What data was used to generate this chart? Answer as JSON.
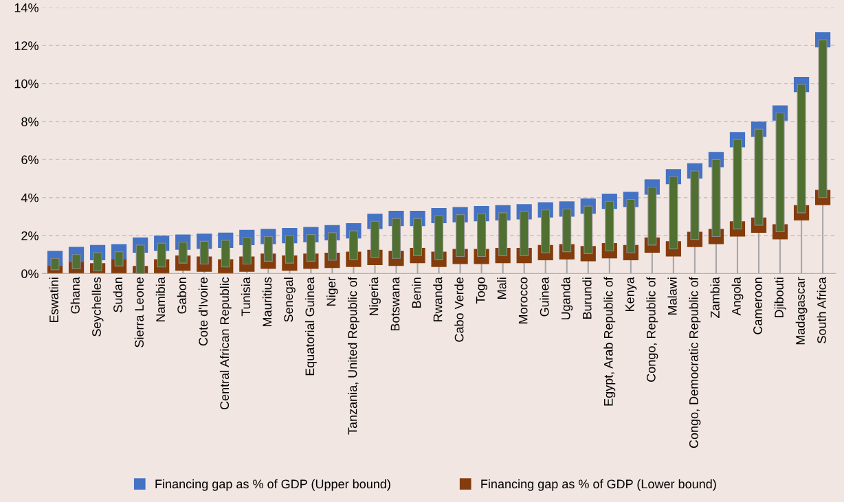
{
  "chart_data": {
    "type": "bar",
    "categories": [
      "Eswatini",
      "Ghana",
      "Seychelles",
      "Sudan",
      "Sierra Leone",
      "Namibia",
      "Gabon",
      "Cote d'Ivoire",
      "Central African Republic",
      "Tunisia",
      "Mauritius",
      "Senegal",
      "Equatorial Guinea",
      "Niger",
      "Tanzania, United Republic of",
      "Nigeria",
      "Botswana",
      "Benin",
      "Rwanda",
      "Cabo Verde",
      "Togo",
      "Mali",
      "Morocco",
      "Guinea",
      "Uganda",
      "Burundi",
      "Egypt, Arab Republic of",
      "Kenya",
      "Congo, Republic of",
      "Malawi",
      "Congo, Democratic Republic of",
      "Zambia",
      "Angola",
      "Cameroon",
      "Djibouti",
      "Madagascar",
      "South Africa"
    ],
    "series": [
      {
        "base": [
          0.2,
          0.25,
          0.15,
          0.4,
          0.0,
          0.35,
          0.55,
          0.5,
          0.35,
          0.5,
          0.65,
          0.55,
          0.65,
          0.7,
          0.75,
          0.85,
          0.8,
          0.95,
          0.75,
          0.9,
          0.9,
          0.95,
          0.95,
          1.1,
          1.15,
          1.05,
          1.2,
          1.1,
          1.5,
          1.3,
          1.8,
          1.95,
          2.35,
          2.55,
          2.2,
          3.2,
          4.0
        ],
        "color": "#4f7030",
        "values": [
          0.6,
          0.75,
          0.95,
          0.75,
          1.5,
          1.25,
          1.1,
          1.2,
          1.4,
          1.4,
          1.3,
          1.45,
          1.4,
          1.45,
          1.5,
          1.9,
          2.1,
          1.95,
          2.3,
          2.2,
          2.25,
          2.25,
          2.3,
          2.25,
          2.25,
          2.5,
          2.6,
          2.8,
          3.05,
          3.8,
          3.6,
          4.05,
          4.7,
          5.05,
          6.25,
          6.75,
          8.3
        ]
      },
      {
        "type": "lollipop",
        "name": "Financing gap as % of GDP (Lower bound)",
        "color": "#843c0c",
        "values": [
          0.2,
          0.25,
          0.15,
          0.4,
          0.0,
          0.35,
          0.55,
          0.5,
          0.35,
          0.5,
          0.65,
          0.55,
          0.65,
          0.7,
          0.75,
          0.85,
          0.8,
          0.95,
          0.75,
          0.9,
          0.9,
          0.95,
          0.95,
          1.1,
          1.15,
          1.05,
          1.2,
          1.1,
          1.5,
          1.3,
          1.8,
          1.95,
          2.35,
          2.55,
          2.2,
          3.2,
          4.0
        ]
      },
      {
        "type": "scatter",
        "name": "Financing gap as % of GDP (Upper bound)",
        "color": "#4472c4",
        "values": [
          0.8,
          1.0,
          1.1,
          1.15,
          1.5,
          1.6,
          1.65,
          1.7,
          1.75,
          1.9,
          1.95,
          2.0,
          2.05,
          2.15,
          2.25,
          2.75,
          2.9,
          2.9,
          3.05,
          3.1,
          3.15,
          3.2,
          3.25,
          3.35,
          3.4,
          3.55,
          3.8,
          3.9,
          4.55,
          5.1,
          5.4,
          6.0,
          7.05,
          7.6,
          8.45,
          9.95,
          12.3
        ]
      }
    ],
    "ylim": [
      0,
      14
    ],
    "yticks": [
      {
        "value": 0,
        "label": "0%"
      },
      {
        "value": 2,
        "label": "2%"
      },
      {
        "value": 4,
        "label": "4%"
      },
      {
        "value": 6,
        "label": "6%"
      },
      {
        "value": 8,
        "label": "8%"
      },
      {
        "value": 10,
        "label": "10%"
      },
      {
        "value": 12,
        "label": "12%"
      },
      {
        "value": 14,
        "label": "14%"
      }
    ],
    "grid": "y",
    "legend": "bottom",
    "marker": "square"
  }
}
